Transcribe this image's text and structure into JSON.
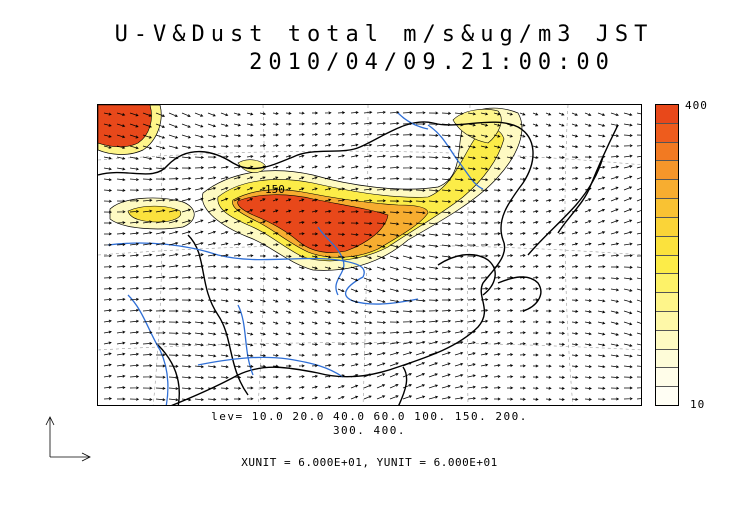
{
  "title_line1": "U-V&Dust total m/s&ug/m3 JST",
  "title_line2": "2010/04/09.21:00:00",
  "colorbar": {
    "max_label": "400",
    "min_label": "10",
    "colors": [
      "#e8481a",
      "#ee5c1d",
      "#f27a22",
      "#f5962a",
      "#f7ad30",
      "#f9c233",
      "#fad438",
      "#fbe23d",
      "#fcec48",
      "#fdf268",
      "#fef58a",
      "#fef8a8",
      "#fefac2",
      "#fefcd8",
      "#fffde9",
      "#fffef4"
    ]
  },
  "levels_line1": "lev= 10.0 20.0 40.0 60.0 100. 150. 200.",
  "levels_line2": "300. 400.",
  "contour_label": "150",
  "units_text": "XUNIT = 6.000E+01, YUNIT = 6.000E+01",
  "reference_vector_icon": "reference-vector-icon"
}
